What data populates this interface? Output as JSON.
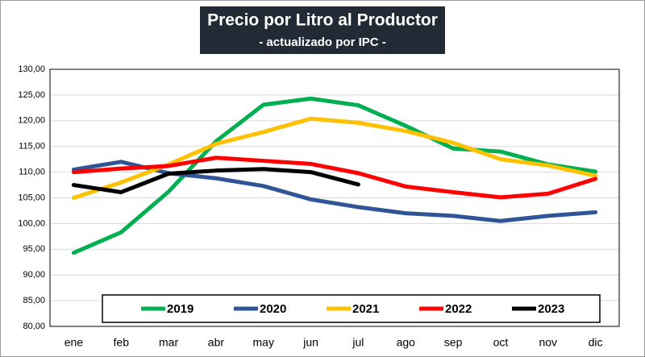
{
  "chart_data": {
    "type": "line",
    "title": "Precio por Litro al Productor",
    "subtitle": "- actualizado por IPC -",
    "categories": [
      "ene",
      "feb",
      "mar",
      "abr",
      "may",
      "jun",
      "jul",
      "ago",
      "sep",
      "oct",
      "nov",
      "dic"
    ],
    "series": [
      {
        "name": "2019",
        "color": "#00b050",
        "values": [
          94.3,
          98.3,
          106.2,
          116,
          123.1,
          124.3,
          123,
          119,
          114.6,
          114,
          111.5,
          110.1
        ]
      },
      {
        "name": "2020",
        "color": "#2f5597",
        "values": [
          110.5,
          112,
          109.8,
          108.8,
          107.3,
          104.7,
          103.2,
          102,
          101.5,
          100.5,
          101.5,
          102.2
        ]
      },
      {
        "name": "2021",
        "color": "#ffc000",
        "values": [
          105,
          108,
          111.5,
          115.5,
          117.8,
          120.4,
          119.6,
          118,
          115.7,
          112.5,
          111.3,
          109.3
        ]
      },
      {
        "name": "2022",
        "color": "#ff0000",
        "values": [
          110,
          110.7,
          111.2,
          112.8,
          112.2,
          111.6,
          109.8,
          107.2,
          106.1,
          105.1,
          105.8,
          108.7
        ]
      },
      {
        "name": "2023",
        "color": "#000000",
        "values": [
          107.5,
          106.1,
          109.7,
          110.3,
          110.6,
          110,
          107.6,
          null,
          null,
          null,
          null,
          null
        ]
      }
    ],
    "ylim": [
      80,
      130
    ],
    "yticks": [
      {
        "value": 80,
        "label": "80,00"
      },
      {
        "value": 85,
        "label": "85,00"
      },
      {
        "value": 90,
        "label": "90,00"
      },
      {
        "value": 95,
        "label": "95,00"
      },
      {
        "value": 100,
        "label": "100,00"
      },
      {
        "value": 105,
        "label": "105,00"
      },
      {
        "value": 110,
        "label": "110,00"
      },
      {
        "value": 115,
        "label": "115,00"
      },
      {
        "value": 120,
        "label": "120,00"
      },
      {
        "value": 125,
        "label": "125,00"
      },
      {
        "value": 130,
        "label": "130,00"
      }
    ],
    "grid": true,
    "legend": "bottom"
  }
}
